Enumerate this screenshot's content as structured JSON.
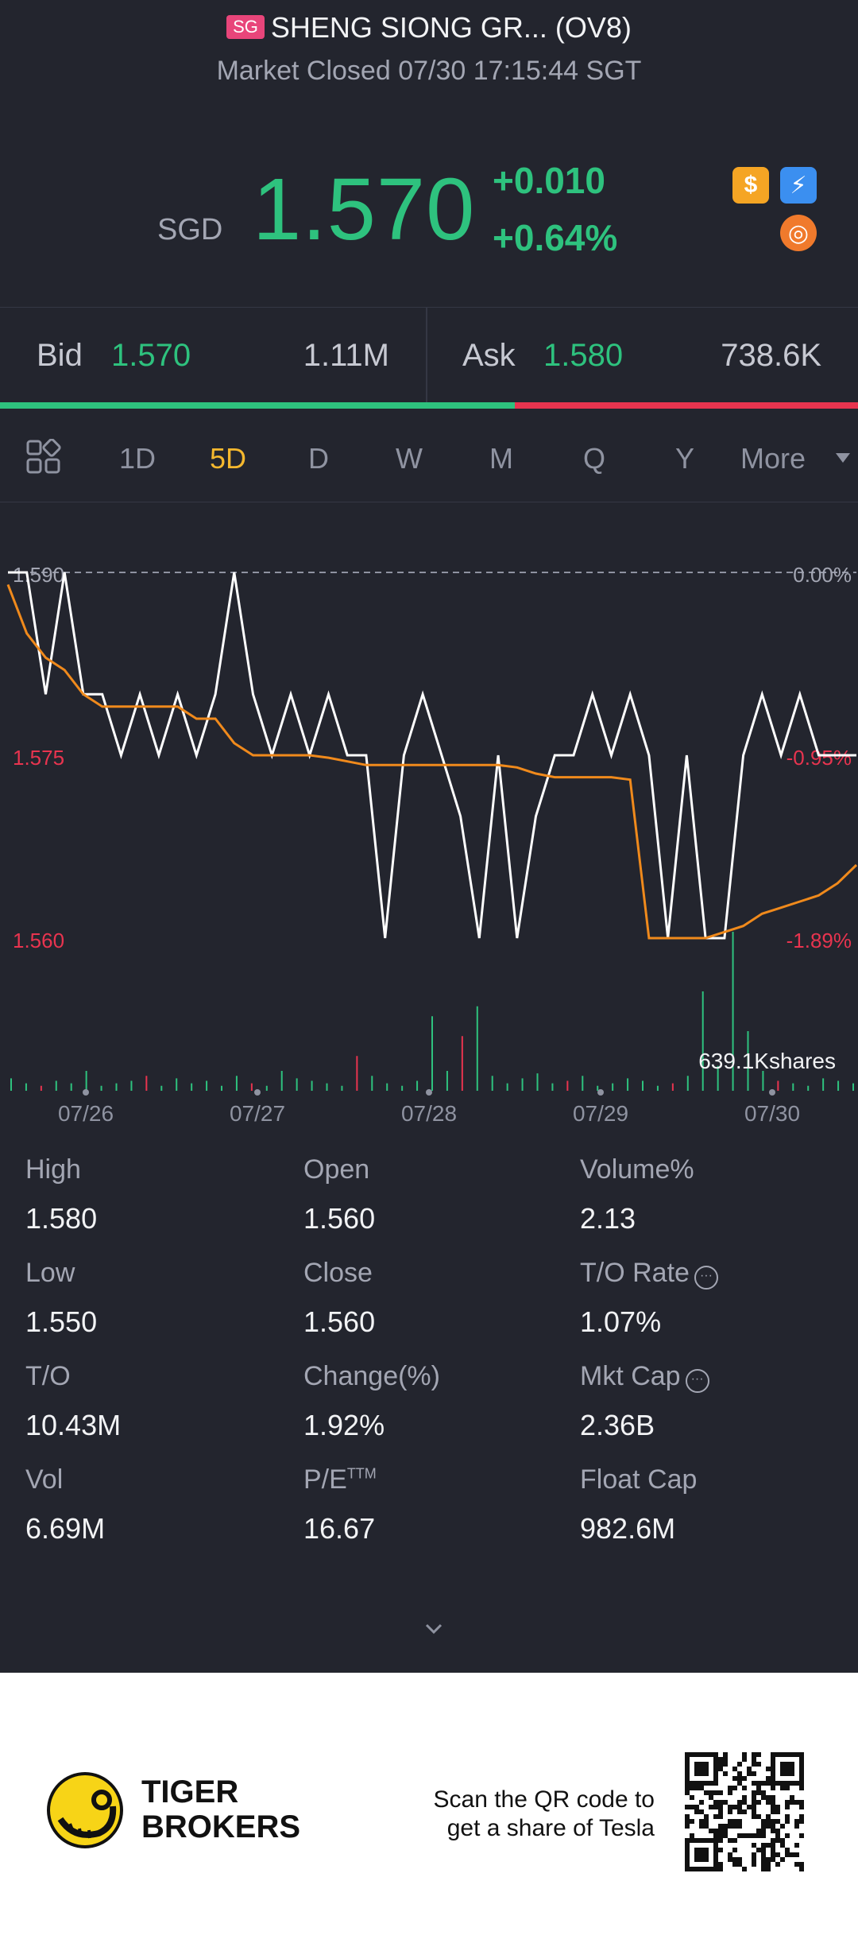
{
  "header": {
    "flag": "SG",
    "title": "SHENG SIONG GR... (OV8)",
    "status": "Market Closed 07/30 17:15:44 SGT"
  },
  "quote": {
    "currency": "SGD",
    "price": "1.570",
    "change": "+0.010",
    "change_pct": "+0.64%",
    "badges": [
      {
        "name": "dollar-icon",
        "glyph": "$",
        "color": "#f5a524"
      },
      {
        "name": "lightning-icon",
        "glyph": "⚡",
        "color": "#3b8ff0"
      },
      {
        "name": "orange-badge-icon",
        "glyph": "◎",
        "color": "#f07a2c"
      }
    ]
  },
  "bidask": {
    "bid_label": "Bid",
    "bid_price": "1.570",
    "bid_size": "1.11M",
    "ask_label": "Ask",
    "ask_price": "1.580",
    "ask_size": "738.6K",
    "bid_ratio": 0.6
  },
  "tabs": {
    "items": [
      "1D",
      "5D",
      "D",
      "W",
      "M",
      "Q",
      "Y",
      "More"
    ],
    "active": "5D"
  },
  "chart_data": {
    "type": "line",
    "title": "",
    "y_labels_left": [
      "1.590",
      "1.575",
      "1.560"
    ],
    "y_labels_right": [
      "0.00%",
      "-0.95%",
      "-1.89%"
    ],
    "ylim": [
      1.56,
      1.59
    ],
    "x_ticks": [
      "07/26",
      "07/27",
      "07/28",
      "07/29",
      "07/30"
    ],
    "volume_label": "639.1Kshares",
    "series": [
      {
        "name": "price",
        "color": "#ffffff",
        "values": [
          1.59,
          1.59,
          1.58,
          1.59,
          1.58,
          1.58,
          1.575,
          1.58,
          1.575,
          1.58,
          1.575,
          1.58,
          1.59,
          1.58,
          1.575,
          1.58,
          1.575,
          1.58,
          1.575,
          1.575,
          1.56,
          1.575,
          1.58,
          1.575,
          1.57,
          1.56,
          1.575,
          1.56,
          1.57,
          1.575,
          1.575,
          1.58,
          1.575,
          1.58,
          1.575,
          1.56,
          1.575,
          1.56,
          1.56,
          1.575,
          1.58,
          1.575,
          1.58,
          1.575,
          1.575,
          1.575
        ]
      },
      {
        "name": "average",
        "color": "#f08a1c",
        "values": [
          1.589,
          1.585,
          1.583,
          1.582,
          1.58,
          1.579,
          1.579,
          1.579,
          1.579,
          1.579,
          1.578,
          1.578,
          1.576,
          1.575,
          1.575,
          1.575,
          1.575,
          1.5748,
          1.5745,
          1.5742,
          1.5742,
          1.5742,
          1.5742,
          1.5742,
          1.5742,
          1.5742,
          1.5742,
          1.574,
          1.5735,
          1.5732,
          1.5732,
          1.5732,
          1.5732,
          1.573,
          1.56,
          1.56,
          1.56,
          1.56,
          1.5605,
          1.561,
          1.562,
          1.5625,
          1.563,
          1.5635,
          1.5645,
          1.566
        ]
      }
    ],
    "volume": [
      5,
      3,
      2,
      4,
      3,
      8,
      2,
      3,
      4,
      6,
      2,
      5,
      3,
      4,
      2,
      6,
      3,
      2,
      8,
      5,
      4,
      3,
      2,
      14,
      6,
      3,
      2,
      4,
      30,
      8,
      22,
      34,
      6,
      3,
      5,
      7,
      3,
      4,
      6,
      2,
      3,
      5,
      4,
      2,
      3,
      6,
      40,
      10,
      64,
      24,
      8,
      4,
      3,
      2,
      5,
      4,
      3
    ]
  },
  "stats": [
    {
      "label": "High",
      "value": "1.580"
    },
    {
      "label": "Open",
      "value": "1.560"
    },
    {
      "label": "Volume%",
      "value": "2.13"
    },
    {
      "label": "Low",
      "value": "1.550"
    },
    {
      "label": "Close",
      "value": "1.560"
    },
    {
      "label": "T/O Rate",
      "value": "1.07%",
      "info": true
    },
    {
      "label": "T/O",
      "value": "10.43M"
    },
    {
      "label": "Change(%)",
      "value": "1.92%"
    },
    {
      "label": "Mkt Cap",
      "value": "2.36B",
      "info": true
    },
    {
      "label": "Vol",
      "value": "6.69M"
    },
    {
      "label": "P/E",
      "sup": "TTM",
      "value": "16.67"
    },
    {
      "label": "Float Cap",
      "value": "982.6M"
    }
  ],
  "footer": {
    "brand_line1": "TIGER",
    "brand_line2": "BROKERS",
    "scan_text": "Scan the QR code to get a share of Tesla"
  }
}
